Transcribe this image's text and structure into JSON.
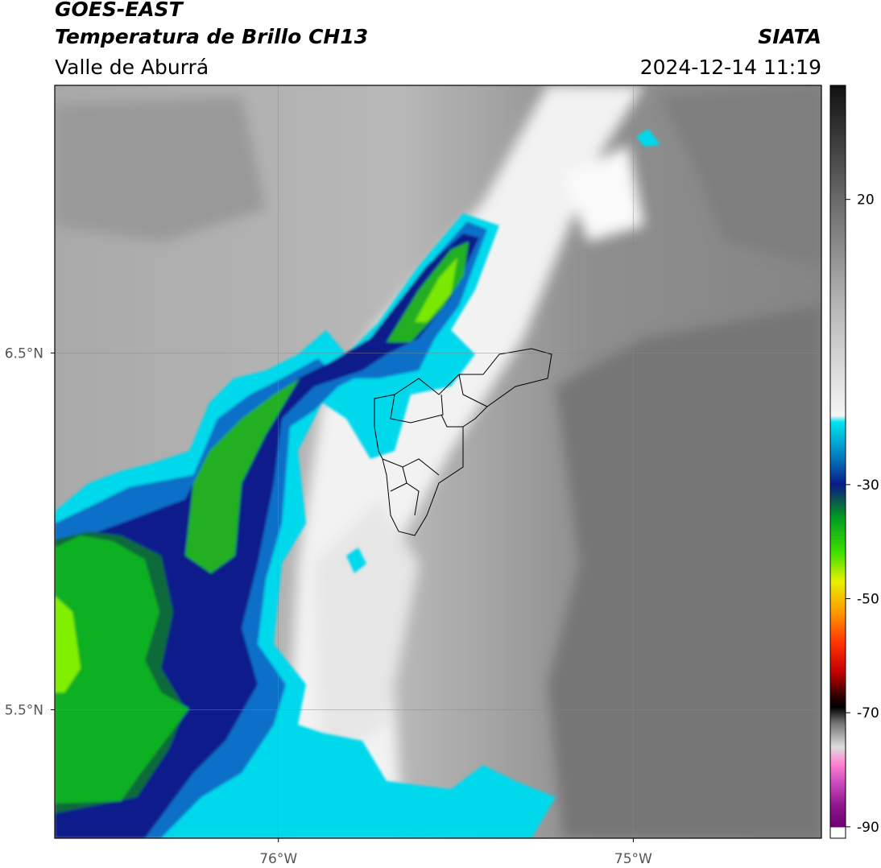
{
  "header": {
    "title": "GOES-EAST",
    "subtitle": "Temperatura de Brillo CH13",
    "region": "Valle de Aburrá",
    "source": "SIATA",
    "datetime": "2024-12-14 11:19"
  },
  "map": {
    "xlim": [
      -76.63,
      -74.47
    ],
    "ylim": [
      5.14,
      7.25
    ],
    "xticks": [
      {
        "value": -76,
        "label": "76°W"
      },
      {
        "value": -75,
        "label": "75°W"
      }
    ],
    "yticks": [
      {
        "value": 6.5,
        "label": "6.5°N"
      },
      {
        "value": 5.5,
        "label": "5.5°N"
      }
    ],
    "grid": true
  },
  "colorbar": {
    "lim": [
      -92,
      40
    ],
    "ticks": [
      20,
      -30,
      -50,
      -70,
      -90
    ]
  }
}
